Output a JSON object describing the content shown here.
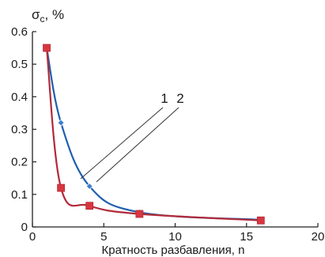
{
  "chart_data": {
    "type": "line",
    "title": "",
    "xlabel": "Кратность разбавления, n",
    "ylabel_symbol": "σ",
    "ylabel_subscript": "c",
    "ylabel_unit": ", %",
    "xlim": [
      0,
      20
    ],
    "ylim": [
      0,
      0.6
    ],
    "xticks": [
      0,
      5,
      10,
      15,
      20
    ],
    "yticks": [
      0,
      0.1,
      0.2,
      0.3,
      0.4,
      0.5,
      0.6
    ],
    "xtick_labels": [
      "0",
      "5",
      "10",
      "15",
      "20"
    ],
    "ytick_labels": [
      "0",
      "0.1",
      "0.2",
      "0.3",
      "0.4",
      "0.5",
      "0.6"
    ],
    "grid": false,
    "legend": "none",
    "series": [
      {
        "name": "1",
        "color": "#b22a3a",
        "marker": "square",
        "marker_color": "#d8363f",
        "x": [
          1,
          2,
          4,
          7.5,
          16
        ],
        "y": [
          0.55,
          0.12,
          0.065,
          0.04,
          0.02
        ]
      },
      {
        "name": "2",
        "color": "#1f5fae",
        "marker": "diamond",
        "marker_color": "#3b7fd0",
        "x": [
          1,
          2,
          4,
          7.5,
          16
        ],
        "y": [
          0.55,
          0.32,
          0.125,
          0.045,
          0.022
        ]
      }
    ]
  }
}
